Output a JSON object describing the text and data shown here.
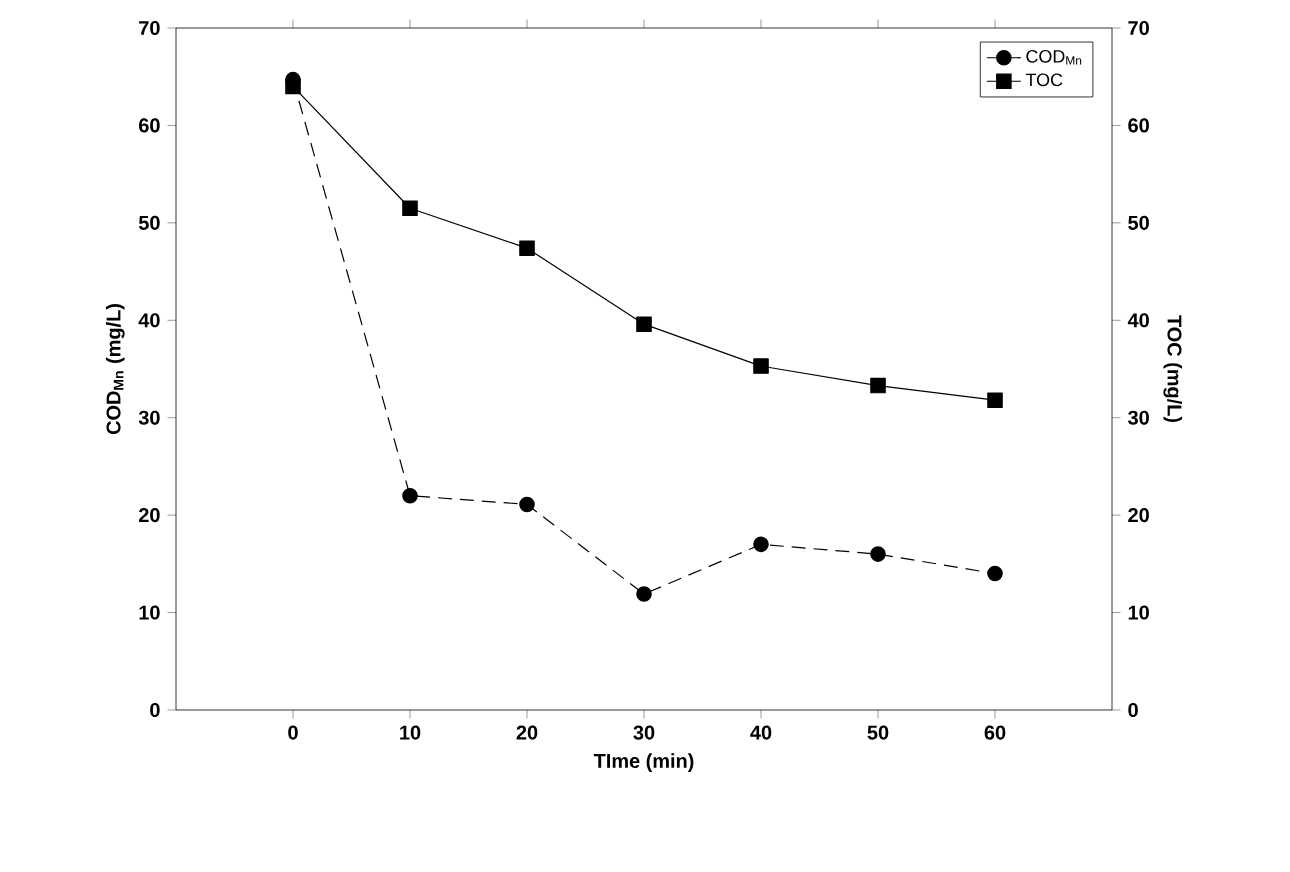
{
  "chart_data": {
    "type": "line",
    "xlabel": "TIme (min)",
    "ylabel": "COD$_{Mn}$ (mg/L)",
    "y2label": "TOC (mg/L)",
    "x": [
      0,
      10,
      20,
      30,
      40,
      50,
      60
    ],
    "series": [
      {
        "name": "COD$_{Mn}$",
        "color": "#000000",
        "marker": "circle",
        "line_style": "dashed",
        "values": [
          64.7,
          22,
          21.1,
          11.9,
          17,
          16,
          14
        ]
      },
      {
        "name": "TOC",
        "color": "#000000",
        "marker": "square",
        "line_style": "solid",
        "axis": "y2",
        "values": [
          64,
          51.5,
          47.4,
          39.6,
          35.3,
          33.3,
          31.8
        ]
      }
    ],
    "xlim": [
      -10,
      70
    ],
    "xticks": [
      0,
      10,
      20,
      30,
      40,
      50,
      60
    ],
    "ylim": [
      0,
      70
    ],
    "yticks": [
      0,
      10,
      20,
      30,
      40,
      50,
      60,
      70
    ],
    "y2lim": [
      0,
      70
    ],
    "y2ticks": [
      0,
      10,
      20,
      30,
      40,
      50,
      60,
      70
    ],
    "legend": "top right",
    "grid": false
  }
}
